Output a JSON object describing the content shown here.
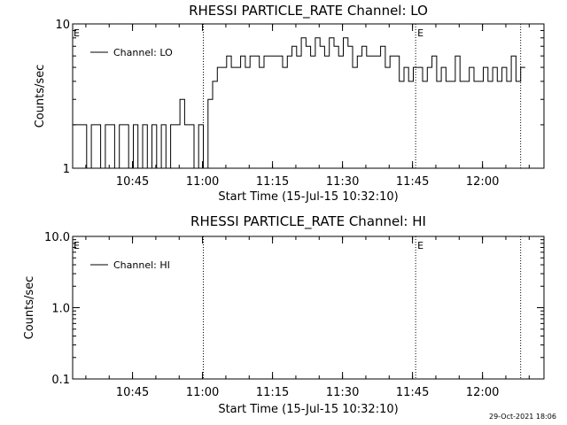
{
  "footer": {
    "timestamp": "29-Oct-2021 18:06"
  },
  "chart_data": [
    {
      "type": "line",
      "title": "RHESSI PARTICLE_RATE Channel: LO",
      "xlabel": "Start Time (15-Jul-15 10:32:10)",
      "ylabel": "Counts/sec",
      "yscale": "log",
      "ylim": [
        1,
        10
      ],
      "ytick_values": [
        1,
        10
      ],
      "ytick_labels": [
        "1",
        "10"
      ],
      "xlim_minutes": [
        0,
        101
      ],
      "xtick_minutes": [
        12.83,
        27.83,
        42.83,
        57.83,
        72.83,
        87.83
      ],
      "xtick_labels": [
        "10:45",
        "11:00",
        "11:15",
        "11:30",
        "11:45",
        "12:00"
      ],
      "legend": {
        "label": "Channel: LO",
        "position": "top-left"
      },
      "event_markers": [
        {
          "x_minutes": 28.0,
          "label": ""
        },
        {
          "x_minutes": 73.5,
          "label": "E"
        },
        {
          "x_minutes": 96.0,
          "label": ""
        }
      ],
      "edge_label": "E",
      "series": [
        {
          "name": "Channel: LO",
          "x_minutes": [
            0,
            1,
            2,
            3,
            4,
            5,
            6,
            7,
            8,
            9,
            10,
            11,
            12,
            13,
            14,
            15,
            16,
            17,
            18,
            19,
            20,
            21,
            22,
            23,
            24,
            25,
            26,
            27,
            28,
            29,
            30,
            31,
            32,
            33,
            34,
            35,
            36,
            37,
            38,
            39,
            40,
            41,
            42,
            43,
            44,
            45,
            46,
            47,
            48,
            49,
            50,
            51,
            52,
            53,
            54,
            55,
            56,
            57,
            58,
            59,
            60,
            61,
            62,
            63,
            64,
            65,
            66,
            67,
            68,
            69,
            70,
            71,
            72,
            73,
            74,
            75,
            76,
            77,
            78,
            79,
            80,
            81,
            82,
            83,
            84,
            85,
            86,
            87,
            88,
            89,
            90,
            91,
            92,
            93,
            94,
            95,
            96
          ],
          "values": [
            2,
            2,
            2,
            1,
            2,
            2,
            1,
            2,
            2,
            1,
            2,
            2,
            1,
            2,
            1,
            2,
            1,
            2,
            1,
            2,
            1,
            2,
            2,
            3,
            2,
            2,
            1,
            2,
            1,
            3,
            4,
            5,
            5,
            6,
            5,
            5,
            6,
            5,
            6,
            6,
            5,
            6,
            6,
            6,
            6,
            5,
            6,
            7,
            6,
            8,
            7,
            6,
            8,
            7,
            6,
            8,
            7,
            6,
            8,
            7,
            5,
            6,
            7,
            6,
            6,
            6,
            7,
            5,
            6,
            6,
            4,
            5,
            4,
            5,
            5,
            4,
            5,
            6,
            4,
            5,
            4,
            4,
            6,
            4,
            4,
            5,
            4,
            4,
            5,
            4,
            5,
            4,
            5,
            4,
            6,
            4,
            5
          ]
        }
      ]
    },
    {
      "type": "line",
      "title": "RHESSI PARTICLE_RATE Channel: HI",
      "xlabel": "Start Time (15-Jul-15 10:32:10)",
      "ylabel": "Counts/sec",
      "yscale": "log",
      "ylim": [
        0.1,
        10
      ],
      "ytick_values": [
        0.1,
        1,
        10
      ],
      "ytick_labels": [
        "0.1",
        "1.0",
        "10.0"
      ],
      "xlim_minutes": [
        0,
        101
      ],
      "xtick_minutes": [
        12.83,
        27.83,
        42.83,
        57.83,
        72.83,
        87.83
      ],
      "xtick_labels": [
        "10:45",
        "11:00",
        "11:15",
        "11:30",
        "11:45",
        "12:00"
      ],
      "legend": {
        "label": "Channel: HI",
        "position": "top-left"
      },
      "event_markers": [
        {
          "x_minutes": 28.0,
          "label": ""
        },
        {
          "x_minutes": 73.5,
          "label": "E"
        },
        {
          "x_minutes": 96.0,
          "label": ""
        }
      ],
      "edge_label": "E",
      "series": [
        {
          "name": "Channel: HI",
          "x_minutes": [],
          "values": []
        }
      ]
    }
  ]
}
